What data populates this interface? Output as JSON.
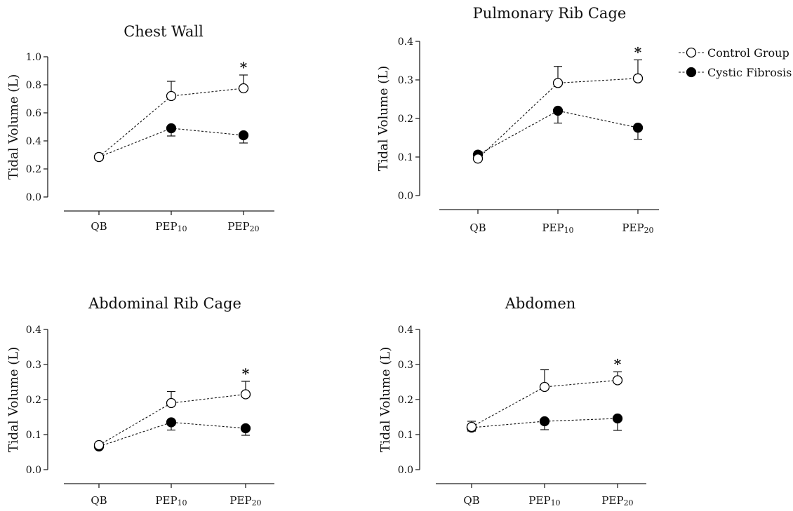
{
  "chart_data": [
    {
      "type": "line",
      "title": "Chest Wall",
      "ylabel": "Tidal Volume (L)",
      "categories": [
        "QB",
        "PEP10",
        "PEP20"
      ],
      "ylim": [
        0,
        1.0
      ],
      "yticks": [
        "0.0",
        "0.2",
        "0.4",
        "0.6",
        "0.8",
        "1.0"
      ],
      "series": [
        {
          "name": "Control Group",
          "marker": "open-circle",
          "values": [
            0.285,
            0.72,
            0.775
          ],
          "error": [
            0.02,
            0.105,
            0.095
          ]
        },
        {
          "name": "Cystic Fibrosis",
          "marker": "filled-circle",
          "values": [
            0.285,
            0.49,
            0.44
          ],
          "error": [
            0.02,
            0.055,
            0.055
          ]
        }
      ],
      "annotations": [
        {
          "text": "*",
          "category": "PEP20"
        }
      ]
    },
    {
      "type": "line",
      "title": "Pulmonary Rib Cage",
      "ylabel": "Tidal Volume (L)",
      "categories": [
        "QB",
        "PEP10",
        "PEP20"
      ],
      "ylim": [
        0,
        0.4
      ],
      "yticks": [
        "0.0",
        "0.1",
        "0.2",
        "0.3",
        "0.4"
      ],
      "series": [
        {
          "name": "Control Group",
          "marker": "open-circle",
          "values": [
            0.096,
            0.292,
            0.304
          ],
          "error": [
            0.018,
            0.043,
            0.048
          ]
        },
        {
          "name": "Cystic Fibrosis",
          "marker": "filled-circle",
          "values": [
            0.106,
            0.22,
            0.176
          ],
          "error": [
            0.012,
            0.032,
            0.03
          ]
        }
      ],
      "annotations": [
        {
          "text": "*",
          "category": "PEP20"
        }
      ]
    },
    {
      "type": "line",
      "title": "Abdominal Rib Cage",
      "ylabel": "Tidal Volume (L)",
      "categories": [
        "QB",
        "PEP10",
        "PEP20"
      ],
      "ylim": [
        0,
        0.4
      ],
      "yticks": [
        "0.0",
        "0.1",
        "0.2",
        "0.3",
        "0.4"
      ],
      "series": [
        {
          "name": "Control Group",
          "marker": "open-circle",
          "values": [
            0.07,
            0.19,
            0.215
          ],
          "error": [
            0.006,
            0.033,
            0.037
          ]
        },
        {
          "name": "Cystic Fibrosis",
          "marker": "filled-circle",
          "values": [
            0.066,
            0.135,
            0.118
          ],
          "error": [
            0.004,
            0.022,
            0.02
          ]
        }
      ],
      "annotations": [
        {
          "text": "*",
          "category": "PEP20"
        }
      ]
    },
    {
      "type": "line",
      "title": "Abdomen",
      "ylabel": "Tidal Volume (L)",
      "categories": [
        "QB",
        "PEP10",
        "PEP20"
      ],
      "ylim": [
        0,
        0.4
      ],
      "yticks": [
        "0.0",
        "0.1",
        "0.2",
        "0.3",
        "0.4"
      ],
      "series": [
        {
          "name": "Control Group",
          "marker": "open-circle",
          "values": [
            0.122,
            0.236,
            0.255
          ],
          "error": [
            0.016,
            0.049,
            0.024
          ]
        },
        {
          "name": "Cystic Fibrosis",
          "marker": "filled-circle",
          "values": [
            0.12,
            0.138,
            0.146
          ],
          "error": [
            0.01,
            0.024,
            0.034
          ]
        }
      ],
      "annotations": [
        {
          "text": "*",
          "category": "PEP20"
        }
      ]
    }
  ],
  "legend": {
    "items": [
      {
        "name": "Control Group",
        "marker": "open-circle"
      },
      {
        "name": "Cystic Fibrosis",
        "marker": "filled-circle"
      }
    ]
  }
}
